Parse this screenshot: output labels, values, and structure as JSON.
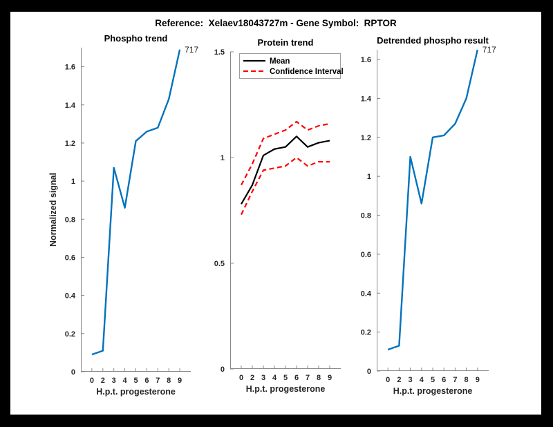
{
  "figure": {
    "title": "Reference:  Xelaev18043727m - Gene Symbol:  RPTOR"
  },
  "colors": {
    "blue": "#0072BD",
    "red": "#FF0000",
    "mean_black": "#000000",
    "axis": "#878787",
    "label": "#262626",
    "frame": "#000000",
    "canvas": "#FFFFFF"
  },
  "chart_data": [
    {
      "type": "line",
      "title": "Phospho trend",
      "xlabel": "H.p.t. progesterone",
      "ylabel": "Normalized signal",
      "x_tick_labels": [
        "0",
        "2",
        "3",
        "4",
        "5",
        "6",
        "7",
        "8",
        "9"
      ],
      "ylim": [
        0,
        1.7
      ],
      "ytick_values": [
        0,
        0.2,
        0.4,
        0.6,
        0.8,
        1,
        1.2,
        1.4,
        1.6
      ],
      "ytick_labels": [
        "0",
        "0.2",
        "0.4",
        "0.6",
        "0.8",
        "1",
        "1.2",
        "1.4",
        "1.6"
      ],
      "grid": false,
      "end_label": "717",
      "legend": null,
      "series": [
        {
          "name": "Phospho signal",
          "color": "#0072BD",
          "dash": "",
          "width": 2.4,
          "values": [
            0.09,
            0.11,
            1.07,
            0.86,
            1.21,
            1.26,
            1.28,
            1.43,
            1.69
          ]
        }
      ]
    },
    {
      "type": "line",
      "title": "Protein trend",
      "xlabel": "H.p.t. progesterone",
      "ylabel": "",
      "x_tick_labels": [
        "0",
        "2",
        "3",
        "4",
        "5",
        "6",
        "7",
        "8",
        "9"
      ],
      "ylim": [
        0,
        1.5
      ],
      "ytick_values": [
        0,
        0.5,
        1,
        1.5
      ],
      "ytick_labels": [
        "0",
        "0.5",
        "1",
        "1.5"
      ],
      "grid": false,
      "end_label": null,
      "legend": {
        "position": "northwest",
        "entries": [
          {
            "label": "Mean",
            "series": 0
          },
          {
            "label": "Confidence Interval",
            "series": 1
          }
        ]
      },
      "series": [
        {
          "name": "Mean",
          "color": "#000000",
          "dash": "",
          "width": 2.2,
          "values": [
            0.78,
            0.87,
            1.01,
            1.04,
            1.05,
            1.1,
            1.05,
            1.07,
            1.08
          ]
        },
        {
          "name": "Confidence Interval upper",
          "color": "#FF0000",
          "dash": "7 4.5",
          "width": 2.2,
          "values": [
            0.87,
            0.97,
            1.09,
            1.11,
            1.13,
            1.17,
            1.13,
            1.15,
            1.16
          ]
        },
        {
          "name": "Confidence Interval lower",
          "color": "#FF0000",
          "dash": "7 4.5",
          "width": 2.2,
          "values": [
            0.73,
            0.84,
            0.94,
            0.95,
            0.96,
            1.0,
            0.96,
            0.98,
            0.98
          ]
        }
      ]
    },
    {
      "type": "line",
      "title": "Detrended phospho result",
      "xlabel": "H.p.t. progesterone",
      "ylabel": "",
      "x_tick_labels": [
        "0",
        "2",
        "3",
        "4",
        "5",
        "6",
        "7",
        "8",
        "9"
      ],
      "ylim": [
        0,
        1.65
      ],
      "ytick_values": [
        0,
        0.2,
        0.4,
        0.6,
        0.8,
        1,
        1.2,
        1.4,
        1.6
      ],
      "ytick_labels": [
        "0",
        "0.2",
        "0.4",
        "0.6",
        "0.8",
        "1",
        "1.2",
        "1.4",
        "1.6"
      ],
      "grid": false,
      "end_label": "717",
      "legend": null,
      "series": [
        {
          "name": "Detrended phospho signal",
          "color": "#0072BD",
          "dash": "",
          "width": 2.4,
          "values": [
            0.11,
            0.13,
            1.1,
            0.86,
            1.2,
            1.21,
            1.27,
            1.4,
            1.65
          ]
        }
      ]
    }
  ]
}
